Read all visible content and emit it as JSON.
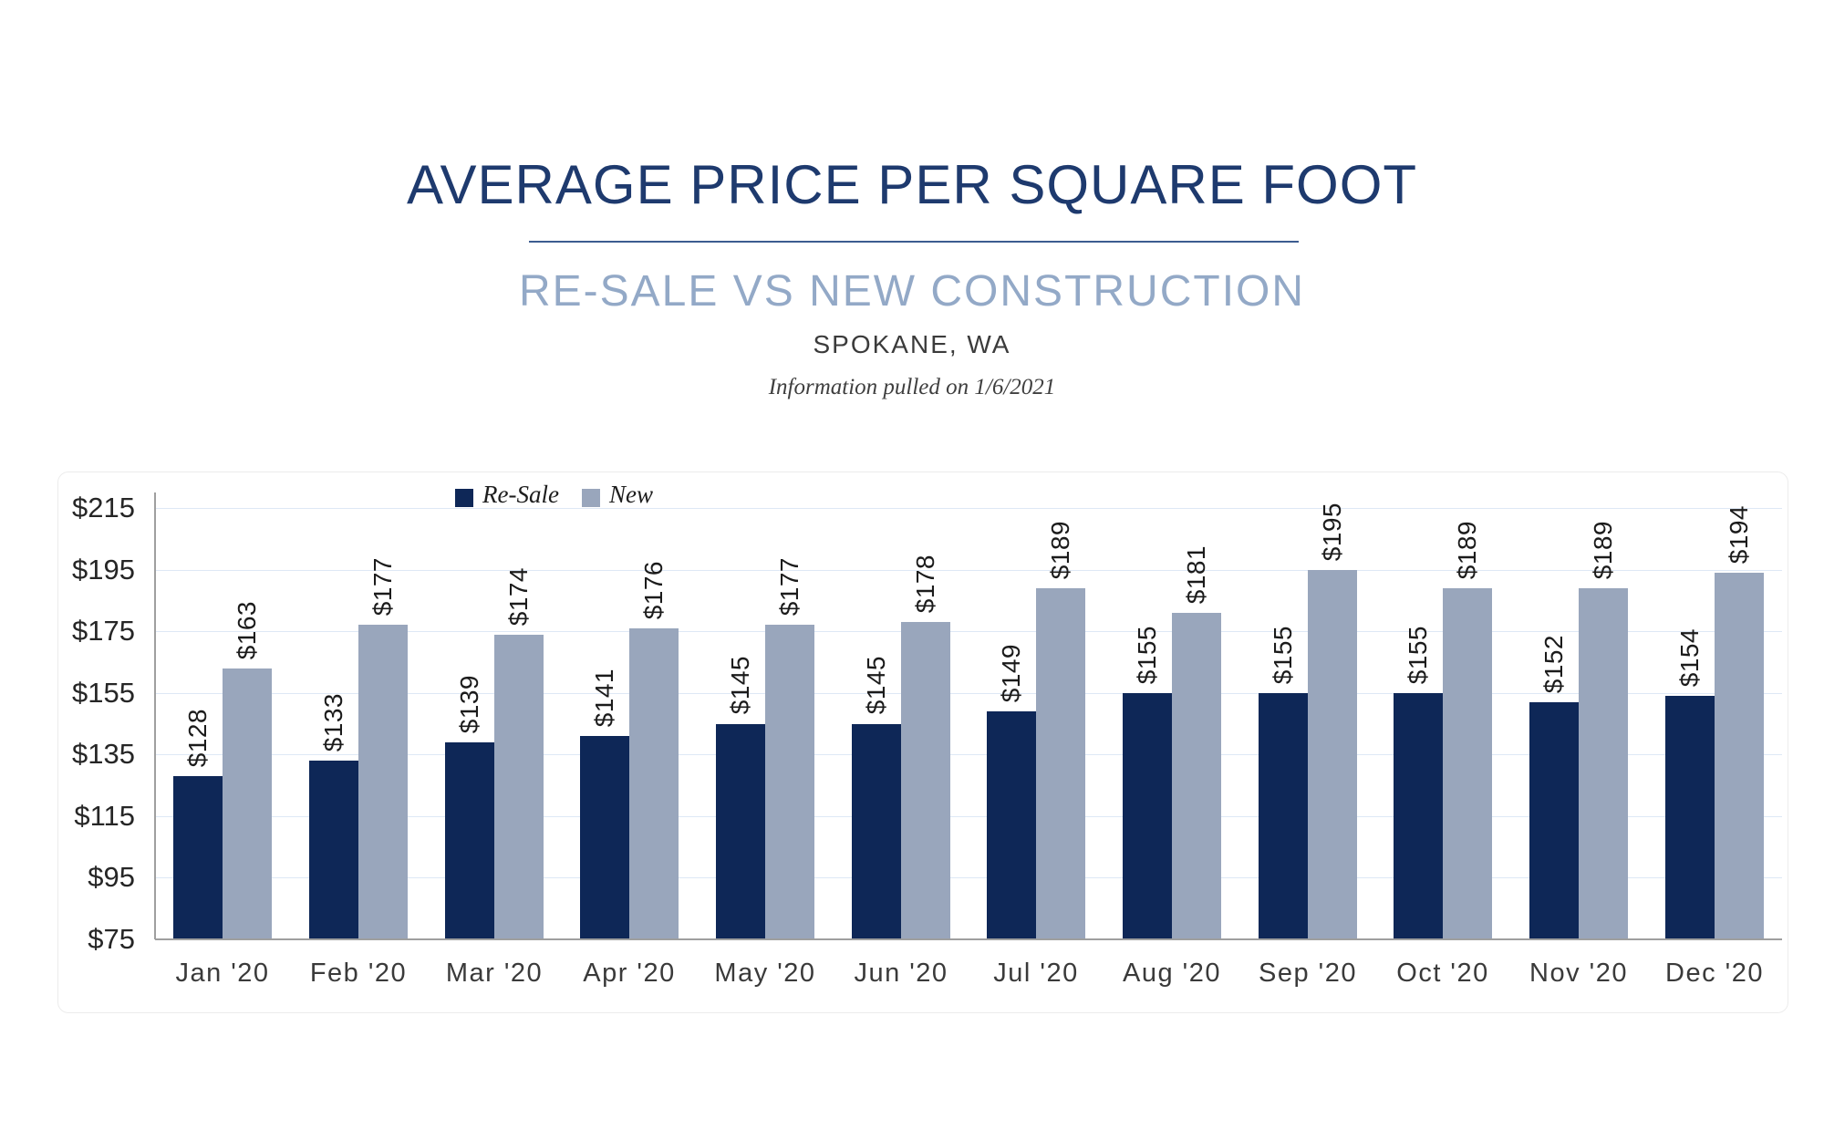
{
  "header": {
    "title": "AVERAGE PRICE PER SQUARE FOOT",
    "subtitle": "RE-SALE VS NEW CONSTRUCTION",
    "location": "SPOKANE, WA",
    "note": "Information pulled on 1/6/2021"
  },
  "legend": {
    "resale_label": "Re-Sale",
    "new_label": "New"
  },
  "colors": {
    "title": "#1e3a6e",
    "divider": "#3c5c90",
    "subtitle": "#93a9c7",
    "location_text": "#3b3b3b",
    "note_text": "#3f3f3f",
    "resale_bar": "#0e2757",
    "new_bar": "#99a6bc",
    "gridline": "#dee8f5",
    "axis": "#9f9f9f",
    "tick_text": "#262626",
    "value_label_text": "#1b1b1b"
  },
  "chart_data": {
    "type": "bar",
    "title": "AVERAGE PRICE PER SQUARE FOOT",
    "subtitle": "RE-SALE VS NEW CONSTRUCTION",
    "location": "SPOKANE, WA",
    "categories": [
      "Jan '20",
      "Feb '20",
      "Mar '20",
      "Apr '20",
      "May '20",
      "Jun '20",
      "Jul '20",
      "Aug '20",
      "Sep '20",
      "Oct '20",
      "Nov '20",
      "Dec '20"
    ],
    "series": [
      {
        "name": "Re-Sale",
        "values": [
          128,
          133,
          139,
          141,
          145,
          145,
          149,
          155,
          155,
          155,
          152,
          154
        ]
      },
      {
        "name": "New",
        "values": [
          163,
          177,
          174,
          176,
          177,
          178,
          189,
          181,
          195,
          189,
          189,
          194
        ]
      }
    ],
    "value_prefix": "$",
    "ylim": [
      75,
      215
    ],
    "ytick_step": 20,
    "ytick_labels": [
      "$75",
      "$95",
      "$115",
      "$135",
      "$155",
      "$175",
      "$195",
      "$215"
    ],
    "grid": true,
    "legend_position": "top-inside-left",
    "value_labels_rotated": true
  }
}
